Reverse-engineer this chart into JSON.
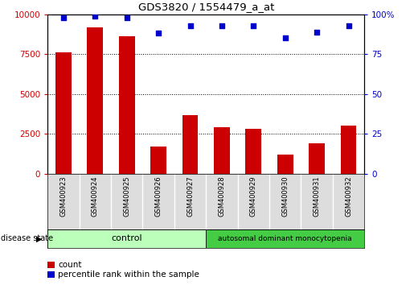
{
  "title": "GDS3820 / 1554479_a_at",
  "samples": [
    "GSM400923",
    "GSM400924",
    "GSM400925",
    "GSM400926",
    "GSM400927",
    "GSM400928",
    "GSM400929",
    "GSM400930",
    "GSM400931",
    "GSM400932"
  ],
  "counts": [
    7600,
    9200,
    8600,
    1700,
    3700,
    2900,
    2800,
    1200,
    1900,
    3000
  ],
  "percentiles": [
    98,
    99,
    98,
    88,
    93,
    93,
    93,
    85,
    89,
    93
  ],
  "bar_color": "#cc0000",
  "dot_color": "#0000cc",
  "control_samples": 5,
  "control_label": "control",
  "disease_label": "autosomal dominant monocytopenia",
  "disease_state_label": "disease state",
  "control_bg": "#bbffbb",
  "disease_bg": "#44cc44",
  "legend_count_label": "count",
  "legend_pct_label": "percentile rank within the sample",
  "ylim_left": [
    0,
    10000
  ],
  "ylim_right": [
    0,
    100
  ],
  "yticks_left": [
    0,
    2500,
    5000,
    7500,
    10000
  ],
  "yticks_right": [
    0,
    25,
    50,
    75,
    100
  ],
  "grid_yticks": [
    2500,
    5000,
    7500
  ],
  "bg_color": "#ffffff",
  "tick_bg": "#dddddd",
  "bar_width": 0.5
}
